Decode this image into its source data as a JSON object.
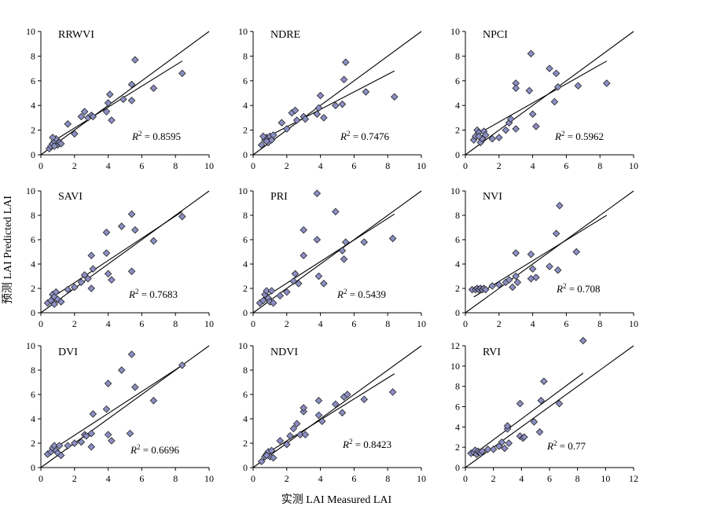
{
  "figure": {
    "ylabel": "预测 LAI Predicted LAI",
    "xlabel": "实测 LAI Measured LAI"
  },
  "chart_data": [
    {
      "type": "scatter",
      "title": "RRWVI",
      "r2_label": "R2 = 0.8595",
      "r2_prefix": "R",
      "r2_sup": "2",
      "r2_value": " = 0.8595",
      "xlim": [
        0,
        10
      ],
      "ylim": [
        0,
        10
      ],
      "xticks": [
        0,
        2,
        4,
        6,
        8,
        10
      ],
      "yticks": [
        0,
        2,
        4,
        6,
        8,
        10
      ],
      "identity_line": true,
      "regression_line": {
        "x": [
          0.5,
          8.4
        ],
        "y": [
          0.9,
          7.6
        ]
      },
      "points": [
        [
          0.5,
          0.5
        ],
        [
          0.6,
          0.7
        ],
        [
          0.7,
          0.9
        ],
        [
          0.8,
          1.1
        ],
        [
          0.9,
          1.3
        ],
        [
          1.0,
          0.8
        ],
        [
          1.1,
          1.0
        ],
        [
          1.2,
          0.9
        ],
        [
          0.8,
          0.7
        ],
        [
          0.7,
          1.4
        ],
        [
          1.6,
          2.5
        ],
        [
          2.0,
          1.7
        ],
        [
          2.4,
          3.1
        ],
        [
          2.6,
          3.5
        ],
        [
          2.8,
          3.0
        ],
        [
          3.0,
          3.2
        ],
        [
          3.1,
          3.1
        ],
        [
          3.9,
          3.5
        ],
        [
          4.0,
          4.2
        ],
        [
          4.1,
          4.9
        ],
        [
          4.2,
          2.8
        ],
        [
          4.9,
          4.5
        ],
        [
          5.4,
          5.7
        ],
        [
          5.4,
          4.4
        ],
        [
          5.6,
          7.7
        ],
        [
          6.7,
          5.4
        ],
        [
          8.4,
          6.6
        ]
      ]
    },
    {
      "type": "scatter",
      "title": "NDRE",
      "r2_label": "R2 = 0.7476",
      "r2_prefix": "R",
      "r2_sup": "2",
      "r2_value": " = 0.7476",
      "xlim": [
        0,
        10
      ],
      "ylim": [
        0,
        10
      ],
      "xticks": [
        0,
        2,
        4,
        6,
        8,
        10
      ],
      "yticks": [
        0,
        2,
        4,
        6,
        8,
        10
      ],
      "identity_line": true,
      "regression_line": {
        "x": [
          0.5,
          8.4
        ],
        "y": [
          1.2,
          6.8
        ]
      },
      "points": [
        [
          0.5,
          0.8
        ],
        [
          0.7,
          1.2
        ],
        [
          0.8,
          1.4
        ],
        [
          0.9,
          1.0
        ],
        [
          1.0,
          1.5
        ],
        [
          1.1,
          1.2
        ],
        [
          1.2,
          1.6
        ],
        [
          0.8,
          1.1
        ],
        [
          0.6,
          1.5
        ],
        [
          1.7,
          2.6
        ],
        [
          2.0,
          2.1
        ],
        [
          2.3,
          3.4
        ],
        [
          2.5,
          3.6
        ],
        [
          2.6,
          2.8
        ],
        [
          3.0,
          3.1
        ],
        [
          3.1,
          2.9
        ],
        [
          3.8,
          3.3
        ],
        [
          3.9,
          3.8
        ],
        [
          4.0,
          4.8
        ],
        [
          4.2,
          3.0
        ],
        [
          4.9,
          4.0
        ],
        [
          5.3,
          4.1
        ],
        [
          5.4,
          6.1
        ],
        [
          5.5,
          7.5
        ],
        [
          6.7,
          5.1
        ],
        [
          8.4,
          4.7
        ]
      ]
    },
    {
      "type": "scatter",
      "title": "NPCI",
      "r2_label": "R2 = 0.5962",
      "r2_prefix": "R",
      "r2_sup": "2",
      "r2_value": " = 0.5962",
      "xlim": [
        0,
        10
      ],
      "ylim": [
        0,
        10
      ],
      "xticks": [
        0,
        2,
        4,
        6,
        8,
        10
      ],
      "yticks": [
        0,
        2,
        4,
        6,
        8,
        10
      ],
      "identity_line": true,
      "regression_line": {
        "x": [
          0.5,
          8.4
        ],
        "y": [
          1.5,
          7.6
        ]
      },
      "points": [
        [
          0.5,
          1.2
        ],
        [
          0.6,
          1.5
        ],
        [
          0.7,
          2.0
        ],
        [
          0.8,
          1.8
        ],
        [
          0.9,
          1.0
        ],
        [
          1.0,
          1.3
        ],
        [
          1.1,
          1.9
        ],
        [
          1.2,
          1.6
        ],
        [
          0.8,
          1.5
        ],
        [
          1.6,
          1.3
        ],
        [
          2.0,
          1.4
        ],
        [
          2.4,
          2.0
        ],
        [
          2.6,
          2.6
        ],
        [
          2.7,
          2.9
        ],
        [
          3.0,
          5.8
        ],
        [
          3.0,
          5.4
        ],
        [
          3.0,
          2.1
        ],
        [
          3.9,
          8.2
        ],
        [
          3.8,
          5.2
        ],
        [
          4.0,
          3.3
        ],
        [
          4.2,
          2.3
        ],
        [
          5.0,
          7.0
        ],
        [
          5.3,
          4.3
        ],
        [
          5.5,
          5.5
        ],
        [
          5.4,
          6.6
        ],
        [
          6.7,
          5.6
        ],
        [
          8.4,
          5.8
        ]
      ]
    },
    {
      "type": "scatter",
      "title": "SAVI",
      "r2_label": "R2 = 0.7683",
      "r2_prefix": "R",
      "r2_sup": "2",
      "r2_value": " = 0.7683",
      "xlim": [
        0,
        10
      ],
      "ylim": [
        0,
        10
      ],
      "xticks": [
        0,
        2,
        4,
        6,
        8,
        10
      ],
      "yticks": [
        0,
        2,
        4,
        6,
        8,
        10
      ],
      "identity_line": true,
      "regression_line": {
        "x": [
          0.5,
          8.4
        ],
        "y": [
          1.1,
          8.3
        ]
      },
      "points": [
        [
          0.4,
          0.8
        ],
        [
          0.6,
          1.0
        ],
        [
          0.7,
          1.5
        ],
        [
          0.8,
          1.3
        ],
        [
          0.9,
          1.7
        ],
        [
          1.0,
          1.1
        ],
        [
          1.2,
          0.9
        ],
        [
          0.8,
          0.7
        ],
        [
          1.6,
          1.9
        ],
        [
          2.0,
          2.1
        ],
        [
          2.4,
          2.5
        ],
        [
          2.6,
          3.1
        ],
        [
          2.8,
          2.8
        ],
        [
          3.0,
          2.0
        ],
        [
          3.0,
          4.7
        ],
        [
          3.1,
          3.6
        ],
        [
          3.9,
          4.9
        ],
        [
          3.9,
          6.6
        ],
        [
          4.0,
          3.2
        ],
        [
          4.2,
          2.7
        ],
        [
          4.8,
          7.1
        ],
        [
          5.4,
          8.1
        ],
        [
          5.4,
          3.4
        ],
        [
          5.6,
          6.8
        ],
        [
          6.7,
          5.9
        ],
        [
          8.4,
          7.9
        ]
      ]
    },
    {
      "type": "scatter",
      "title": "PRI",
      "r2_label": "R2 = 0.5439",
      "r2_prefix": "R",
      "r2_sup": "2",
      "r2_value": " = 0.5439",
      "xlim": [
        0,
        10
      ],
      "ylim": [
        0,
        10
      ],
      "xticks": [
        0,
        2,
        4,
        6,
        8,
        10
      ],
      "yticks": [
        0,
        2,
        4,
        6,
        8,
        10
      ],
      "identity_line": true,
      "regression_line": {
        "x": [
          0.5,
          8.4
        ],
        "y": [
          1.1,
          8.1
        ]
      },
      "points": [
        [
          0.4,
          0.8
        ],
        [
          0.6,
          1.0
        ],
        [
          0.7,
          1.5
        ],
        [
          0.8,
          1.8
        ],
        [
          0.9,
          1.2
        ],
        [
          1.0,
          0.9
        ],
        [
          1.1,
          1.8
        ],
        [
          1.2,
          0.8
        ],
        [
          1.6,
          1.4
        ],
        [
          2.0,
          1.7
        ],
        [
          2.4,
          2.6
        ],
        [
          2.5,
          3.2
        ],
        [
          2.7,
          2.4
        ],
        [
          3.0,
          4.7
        ],
        [
          3.0,
          6.8
        ],
        [
          3.8,
          6.0
        ],
        [
          3.8,
          9.8
        ],
        [
          3.9,
          3.0
        ],
        [
          4.2,
          2.4
        ],
        [
          4.9,
          8.3
        ],
        [
          5.3,
          5.1
        ],
        [
          5.4,
          4.4
        ],
        [
          5.5,
          5.8
        ],
        [
          6.6,
          5.8
        ],
        [
          8.3,
          6.1
        ]
      ]
    },
    {
      "type": "scatter",
      "title": "NVI",
      "r2_label": "R2 = 0.708",
      "r2_prefix": "R",
      "r2_sup": "2",
      "r2_value": " = 0.708",
      "xlim": [
        0,
        10
      ],
      "ylim": [
        0,
        10
      ],
      "xticks": [
        0,
        2,
        4,
        6,
        8,
        10
      ],
      "yticks": [
        0,
        2,
        4,
        6,
        8,
        10
      ],
      "identity_line": true,
      "regression_line": {
        "x": [
          0.5,
          8.4
        ],
        "y": [
          1.3,
          8.0
        ]
      },
      "points": [
        [
          0.4,
          1.9
        ],
        [
          0.6,
          1.9
        ],
        [
          0.7,
          2.0
        ],
        [
          0.8,
          1.9
        ],
        [
          0.9,
          2.0
        ],
        [
          1.0,
          1.9
        ],
        [
          1.1,
          2.0
        ],
        [
          1.2,
          1.9
        ],
        [
          1.6,
          2.2
        ],
        [
          2.0,
          2.3
        ],
        [
          2.4,
          2.5
        ],
        [
          2.6,
          2.7
        ],
        [
          2.8,
          2.1
        ],
        [
          3.0,
          3.0
        ],
        [
          3.0,
          4.9
        ],
        [
          3.1,
          2.5
        ],
        [
          3.9,
          2.8
        ],
        [
          3.9,
          4.8
        ],
        [
          4.0,
          3.6
        ],
        [
          4.2,
          2.9
        ],
        [
          5.0,
          3.8
        ],
        [
          5.4,
          6.5
        ],
        [
          5.5,
          3.5
        ],
        [
          5.6,
          8.8
        ],
        [
          6.6,
          5.0
        ]
      ]
    },
    {
      "type": "scatter",
      "title": "DVI",
      "r2_label": "R2 = 0.6696",
      "r2_prefix": "R",
      "r2_sup": "2",
      "r2_value": " = 0.6696",
      "xlim": [
        0,
        10
      ],
      "ylim": [
        0,
        10
      ],
      "xticks": [
        0,
        2,
        4,
        6,
        8,
        10
      ],
      "yticks": [
        0,
        2,
        4,
        6,
        8,
        10
      ],
      "identity_line": true,
      "regression_line": {
        "x": [
          0.5,
          8.4
        ],
        "y": [
          1.3,
          8.4
        ]
      },
      "points": [
        [
          0.4,
          1.1
        ],
        [
          0.6,
          1.3
        ],
        [
          0.7,
          1.6
        ],
        [
          0.8,
          1.8
        ],
        [
          0.9,
          1.4
        ],
        [
          1.0,
          1.2
        ],
        [
          1.2,
          1.0
        ],
        [
          1.1,
          1.8
        ],
        [
          1.6,
          1.8
        ],
        [
          2.0,
          2.0
        ],
        [
          2.4,
          2.1
        ],
        [
          2.6,
          2.7
        ],
        [
          2.7,
          2.6
        ],
        [
          3.0,
          1.7
        ],
        [
          3.0,
          2.8
        ],
        [
          3.1,
          4.4
        ],
        [
          3.9,
          4.8
        ],
        [
          4.0,
          6.9
        ],
        [
          4.0,
          2.7
        ],
        [
          4.2,
          2.2
        ],
        [
          4.8,
          8.0
        ],
        [
          5.4,
          9.3
        ],
        [
          5.3,
          2.8
        ],
        [
          5.6,
          6.6
        ],
        [
          6.7,
          5.5
        ],
        [
          8.4,
          8.4
        ]
      ]
    },
    {
      "type": "scatter",
      "title": "NDVI",
      "r2_label": "R2 = 0.8423",
      "r2_prefix": "R",
      "r2_sup": "2",
      "r2_value": " = 0.8423",
      "xlim": [
        0,
        10
      ],
      "ylim": [
        0,
        10
      ],
      "xticks": [
        0,
        2,
        4,
        6,
        8,
        10
      ],
      "yticks": [
        0,
        2,
        4,
        6,
        8,
        10
      ],
      "identity_line": true,
      "regression_line": {
        "x": [
          0.5,
          8.4
        ],
        "y": [
          0.9,
          7.7
        ]
      },
      "points": [
        [
          0.5,
          0.5
        ],
        [
          0.7,
          0.9
        ],
        [
          0.8,
          1.1
        ],
        [
          0.9,
          1.3
        ],
        [
          1.0,
          0.9
        ],
        [
          1.1,
          1.4
        ],
        [
          1.2,
          0.8
        ],
        [
          0.8,
          1.0
        ],
        [
          1.6,
          2.2
        ],
        [
          2.0,
          1.9
        ],
        [
          2.2,
          2.6
        ],
        [
          2.4,
          3.2
        ],
        [
          2.6,
          3.6
        ],
        [
          2.8,
          2.7
        ],
        [
          3.0,
          4.6
        ],
        [
          3.0,
          4.9
        ],
        [
          3.1,
          2.7
        ],
        [
          3.9,
          4.3
        ],
        [
          3.9,
          5.5
        ],
        [
          4.1,
          3.8
        ],
        [
          4.9,
          5.2
        ],
        [
          5.3,
          4.5
        ],
        [
          5.4,
          5.8
        ],
        [
          5.6,
          6.0
        ],
        [
          6.6,
          5.6
        ],
        [
          8.3,
          6.2
        ]
      ]
    },
    {
      "type": "scatter",
      "title": "RVI",
      "r2_label": "R2 = 0.77",
      "r2_prefix": "R",
      "r2_sup": "2",
      "r2_value": " = 0.77",
      "xlim": [
        0,
        12
      ],
      "ylim": [
        0,
        12
      ],
      "xticks": [
        0,
        2,
        4,
        6,
        8,
        10,
        12
      ],
      "yticks": [
        0,
        2,
        4,
        6,
        8,
        10,
        12
      ],
      "identity_line": true,
      "regression_line": {
        "x": [
          0.5,
          8.4
        ],
        "y": [
          1.2,
          9.3
        ]
      },
      "points": [
        [
          0.4,
          1.4
        ],
        [
          0.6,
          1.5
        ],
        [
          0.7,
          1.7
        ],
        [
          0.8,
          1.3
        ],
        [
          0.9,
          1.6
        ],
        [
          1.0,
          1.5
        ],
        [
          1.1,
          1.4
        ],
        [
          1.2,
          1.6
        ],
        [
          1.6,
          1.8
        ],
        [
          2.0,
          1.8
        ],
        [
          2.4,
          2.1
        ],
        [
          2.6,
          2.5
        ],
        [
          2.8,
          1.9
        ],
        [
          3.0,
          3.8
        ],
        [
          3.0,
          4.1
        ],
        [
          3.1,
          2.4
        ],
        [
          3.9,
          3.1
        ],
        [
          3.9,
          6.3
        ],
        [
          4.1,
          2.9
        ],
        [
          4.2,
          3.0
        ],
        [
          4.9,
          4.5
        ],
        [
          5.3,
          3.5
        ],
        [
          5.4,
          6.6
        ],
        [
          5.6,
          8.5
        ],
        [
          6.7,
          6.3
        ],
        [
          8.4,
          12.5
        ]
      ]
    }
  ]
}
